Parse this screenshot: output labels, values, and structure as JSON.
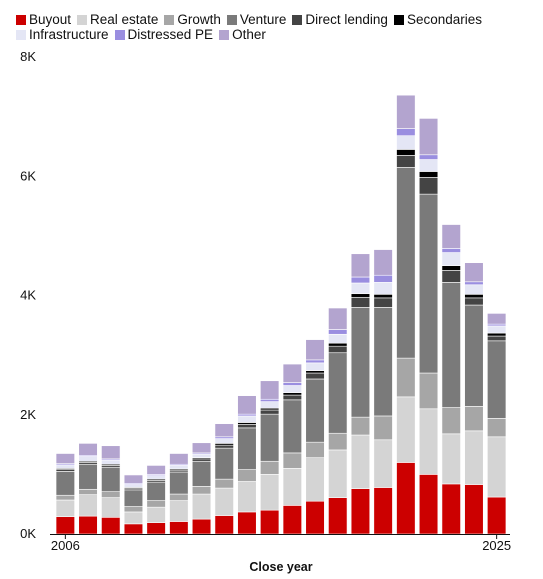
{
  "chart_data": {
    "type": "bar",
    "stacked": true,
    "title": "",
    "xlabel": "Close year",
    "ylabel": "",
    "ylim": [
      0,
      8000
    ],
    "y_ticks": [
      0,
      2000,
      4000,
      6000,
      8000
    ],
    "y_tick_labels": [
      "0K",
      "2K",
      "4K",
      "6K",
      "8K"
    ],
    "x_tick_labels": [
      "2006",
      "2025"
    ],
    "x": [
      2006,
      2007,
      2008,
      2009,
      2010,
      2011,
      2012,
      2013,
      2014,
      2015,
      2016,
      2017,
      2018,
      2019,
      2020,
      2021,
      2022,
      2023,
      2024,
      2025
    ],
    "grid": false,
    "legend_position": "top-left",
    "series": [
      {
        "name": "Buyout",
        "color": "#cc0000",
        "values": [
          290,
          300,
          280,
          170,
          190,
          210,
          250,
          310,
          370,
          400,
          480,
          550,
          610,
          760,
          780,
          1200,
          1000,
          840,
          830,
          620
        ]
      },
      {
        "name": "Real estate",
        "color": "#d4d4d4",
        "values": [
          280,
          360,
          330,
          200,
          260,
          350,
          420,
          460,
          510,
          600,
          620,
          730,
          800,
          900,
          800,
          1100,
          1100,
          840,
          900,
          1010
        ]
      },
      {
        "name": "Growth",
        "color": "#a6a6a6",
        "values": [
          80,
          90,
          100,
          90,
          110,
          110,
          130,
          150,
          200,
          220,
          260,
          260,
          280,
          300,
          400,
          650,
          600,
          440,
          410,
          310
        ]
      },
      {
        "name": "Venture",
        "color": "#7a7a7a",
        "values": [
          400,
          420,
          410,
          280,
          310,
          370,
          420,
          520,
          700,
          790,
          890,
          1060,
          1350,
          1840,
          1820,
          3200,
          3000,
          2100,
          1700,
          1300
        ]
      },
      {
        "name": "Direct lending",
        "color": "#444444",
        "values": [
          30,
          30,
          30,
          20,
          30,
          30,
          40,
          50,
          60,
          70,
          80,
          100,
          110,
          170,
          160,
          200,
          280,
          200,
          120,
          80
        ]
      },
      {
        "name": "Secondaries",
        "color": "#000000",
        "values": [
          20,
          20,
          20,
          20,
          20,
          20,
          20,
          30,
          30,
          30,
          40,
          40,
          50,
          60,
          60,
          100,
          100,
          80,
          60,
          50
        ]
      },
      {
        "name": "Infrastructure",
        "color": "#e4e6f5",
        "values": [
          60,
          80,
          70,
          50,
          60,
          60,
          60,
          80,
          110,
          110,
          120,
          130,
          150,
          180,
          200,
          230,
          200,
          220,
          160,
          120
        ]
      },
      {
        "name": "Distressed PE",
        "color": "#9a8ee0",
        "values": [
          20,
          20,
          20,
          20,
          20,
          20,
          20,
          30,
          30,
          40,
          50,
          50,
          80,
          100,
          120,
          120,
          80,
          70,
          50,
          30
        ]
      },
      {
        "name": "Other",
        "color": "#b3a4cf",
        "values": [
          170,
          200,
          220,
          140,
          150,
          180,
          170,
          220,
          310,
          310,
          310,
          340,
          360,
          390,
          430,
          560,
          610,
          400,
          320,
          180
        ]
      }
    ]
  }
}
